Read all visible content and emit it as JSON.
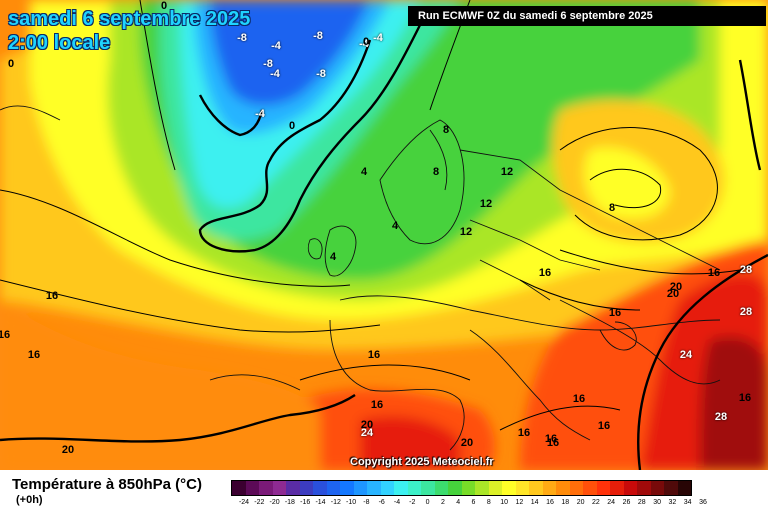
{
  "header": {
    "date_title": "samedi 6 septembre 2025",
    "time_title": "2:00 locale",
    "run_label": "Run ECMWF 0Z du samedi 6 septembre 2025"
  },
  "footer": {
    "variable_title": "Température à 850hPa (°C)",
    "offset_label": "(+0h)",
    "copyright": "Copyright 2025 Meteociel.fr"
  },
  "scale": {
    "colors": [
      "#3b0030",
      "#5c0a57",
      "#7a1a78",
      "#8e2a92",
      "#5a2ca5",
      "#3c3cc0",
      "#2a50dc",
      "#1e64f0",
      "#1478ff",
      "#1e96ff",
      "#28b4ff",
      "#32d2ff",
      "#3cf0f0",
      "#3cf0c8",
      "#3ce6a0",
      "#3cdc6e",
      "#46d23c",
      "#78dc28",
      "#aae628",
      "#dcf028",
      "#ffff28",
      "#ffe628",
      "#ffc81e",
      "#ffaa14",
      "#ff8c0a",
      "#ff6e0a",
      "#ff500a",
      "#ff320a",
      "#e61e0a",
      "#c80a0a",
      "#a00a0a",
      "#780a0a",
      "#500a0a",
      "#280505"
    ],
    "labels": [
      "-24",
      "-22",
      "-20",
      "-18",
      "-16",
      "-14",
      "-12",
      "-10",
      "-8",
      "-6",
      "-4",
      "-2",
      "0",
      "2",
      "4",
      "6",
      "8",
      "10",
      "12",
      "14",
      "16",
      "18",
      "20",
      "22",
      "24",
      "26",
      "28",
      "30",
      "32",
      "34",
      "36"
    ]
  },
  "map_labels": [
    {
      "text": "-8"
    },
    {
      "text": "-4"
    },
    {
      "text": "-8"
    },
    {
      "text": "-4"
    },
    {
      "text": "-8"
    },
    {
      "text": "-4"
    },
    {
      "text": "-8"
    },
    {
      "text": "-4"
    },
    {
      "text": "0"
    },
    {
      "text": "0"
    },
    {
      "text": "-4"
    },
    {
      "text": "0"
    },
    {
      "text": "0"
    },
    {
      "text": "4"
    },
    {
      "text": "4"
    },
    {
      "text": "4"
    },
    {
      "text": "8"
    },
    {
      "text": "8"
    },
    {
      "text": "12"
    },
    {
      "text": "12"
    },
    {
      "text": "12"
    },
    {
      "text": "8"
    },
    {
      "text": "16"
    },
    {
      "text": "16"
    },
    {
      "text": "16"
    },
    {
      "text": "16"
    },
    {
      "text": "16"
    },
    {
      "text": "20"
    },
    {
      "text": "20"
    },
    {
      "text": "28"
    },
    {
      "text": "28"
    },
    {
      "text": "24"
    },
    {
      "text": "16"
    },
    {
      "text": "16"
    },
    {
      "text": "16"
    },
    {
      "text": "16"
    },
    {
      "text": "16"
    },
    {
      "text": "20"
    },
    {
      "text": "24"
    },
    {
      "text": "20"
    },
    {
      "text": "16"
    },
    {
      "text": "16"
    },
    {
      "text": "16"
    },
    {
      "text": "28"
    },
    {
      "text": "20"
    },
    {
      "text": "16"
    }
  ]
}
